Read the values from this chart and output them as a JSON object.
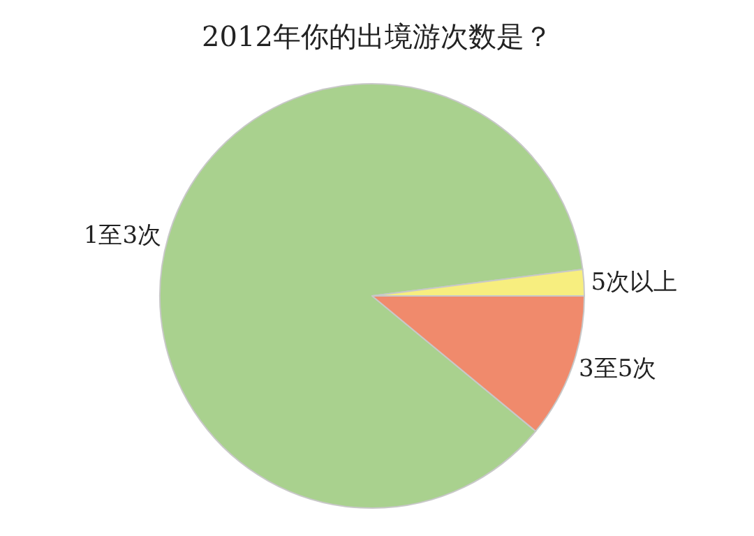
{
  "chart_data": {
    "type": "pie",
    "title": "2012年你的出境游次数是？",
    "categories": [
      "1至3次",
      "3至5次",
      "5次以上"
    ],
    "values": [
      87,
      11,
      2
    ],
    "colors": [
      "#a9d18e",
      "#f08a6c",
      "#f7ee7f"
    ],
    "legend": false
  }
}
